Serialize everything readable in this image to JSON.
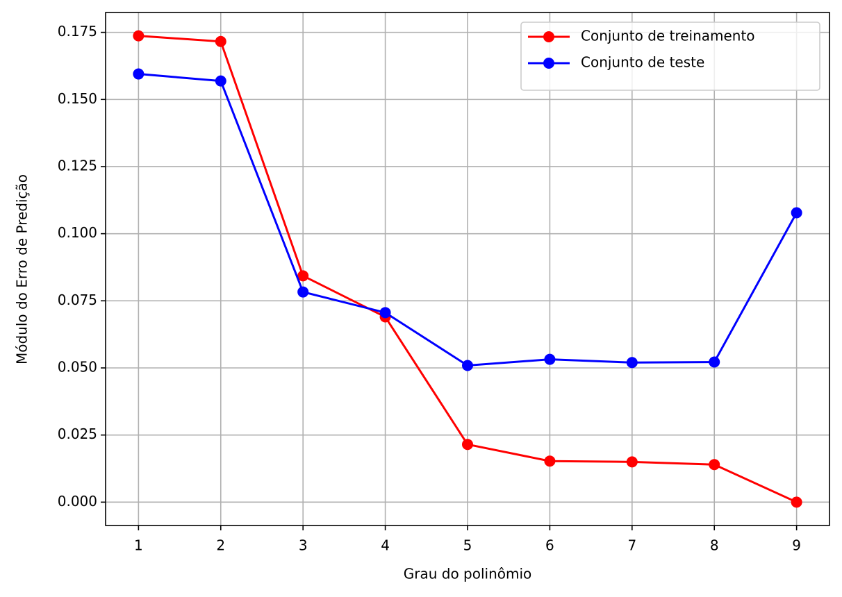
{
  "chart_data": {
    "type": "line",
    "x_label": "Grau do polinômio",
    "y_label": "Módulo do Erro de Predição",
    "x": [
      1,
      2,
      3,
      4,
      5,
      6,
      7,
      8,
      9
    ],
    "series": [
      {
        "name": "Conjunto de treinamento",
        "color": "#ff0000",
        "values": [
          0.1737,
          0.1716,
          0.0843,
          0.069,
          0.0215,
          0.0153,
          0.015,
          0.014,
          0.0
        ]
      },
      {
        "name": "Conjunto de teste",
        "color": "#0000ff",
        "values": [
          0.1595,
          0.1569,
          0.0783,
          0.0706,
          0.0509,
          0.0532,
          0.052,
          0.0522,
          0.1078
        ]
      }
    ],
    "xlim": [
      0.6,
      9.4
    ],
    "ylim": [
      -0.0087,
      0.1824
    ],
    "xticks": [
      1,
      2,
      3,
      4,
      5,
      6,
      7,
      8,
      9
    ],
    "yticks": [
      {
        "value": 0,
        "label": "0.000"
      },
      {
        "value": 0.025,
        "label": "0.025"
      },
      {
        "value": 0.05,
        "label": "0.050"
      },
      {
        "value": 0.075,
        "label": "0.075"
      },
      {
        "value": 0.1,
        "label": "0.100"
      },
      {
        "value": 0.125,
        "label": "0.125"
      },
      {
        "value": 0.15,
        "label": "0.150"
      },
      {
        "value": 0.175,
        "label": "0.175"
      }
    ],
    "grid": true,
    "legend": "upper right"
  }
}
